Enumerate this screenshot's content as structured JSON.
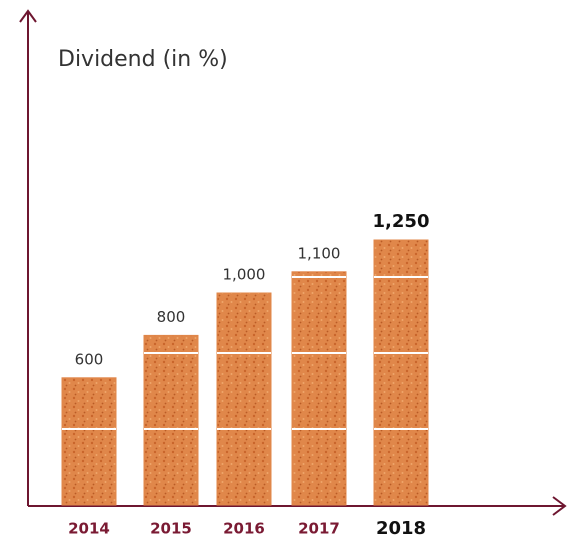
{
  "chart_data": {
    "type": "bar",
    "title": "Dividend (in %)",
    "categories": [
      "2014",
      "2015",
      "2016",
      "2017",
      "2018"
    ],
    "values": [
      600,
      800,
      1000,
      1100,
      1250
    ],
    "value_labels": [
      "600",
      "800",
      "1,000",
      "1,100",
      "1,250"
    ],
    "color": "#e0874a"
  }
}
